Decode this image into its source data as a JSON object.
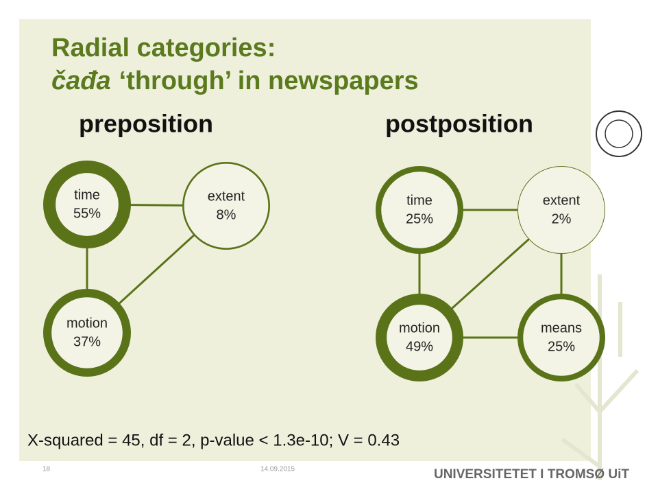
{
  "title": {
    "line1": "Radial categories:",
    "line2_term": "čađa",
    "line2_rest": "‘through’ in newspapers"
  },
  "diagrams": [
    {
      "heading": "preposition",
      "nodes": [
        {
          "label": "time",
          "value": 55,
          "value_label": "55%"
        },
        {
          "label": "extent",
          "value": 8,
          "value_label": "8%"
        },
        {
          "label": "motion",
          "value": 37,
          "value_label": "37%"
        }
      ]
    },
    {
      "heading": "postposition",
      "nodes": [
        {
          "label": "time",
          "value": 25,
          "value_label": "25%"
        },
        {
          "label": "extent",
          "value": 2,
          "value_label": "2%"
        },
        {
          "label": "motion",
          "value": 49,
          "value_label": "49%"
        },
        {
          "label": "means",
          "value": 25,
          "value_label": "25%"
        }
      ]
    }
  ],
  "stats": "X-squared = 45, df = 2, p-value < 1.3e-10; V = 0.43",
  "footer": {
    "page": "18",
    "date": "14.09.2015",
    "logo": "UNIVERSITETET I TROMSØ UiT"
  }
}
